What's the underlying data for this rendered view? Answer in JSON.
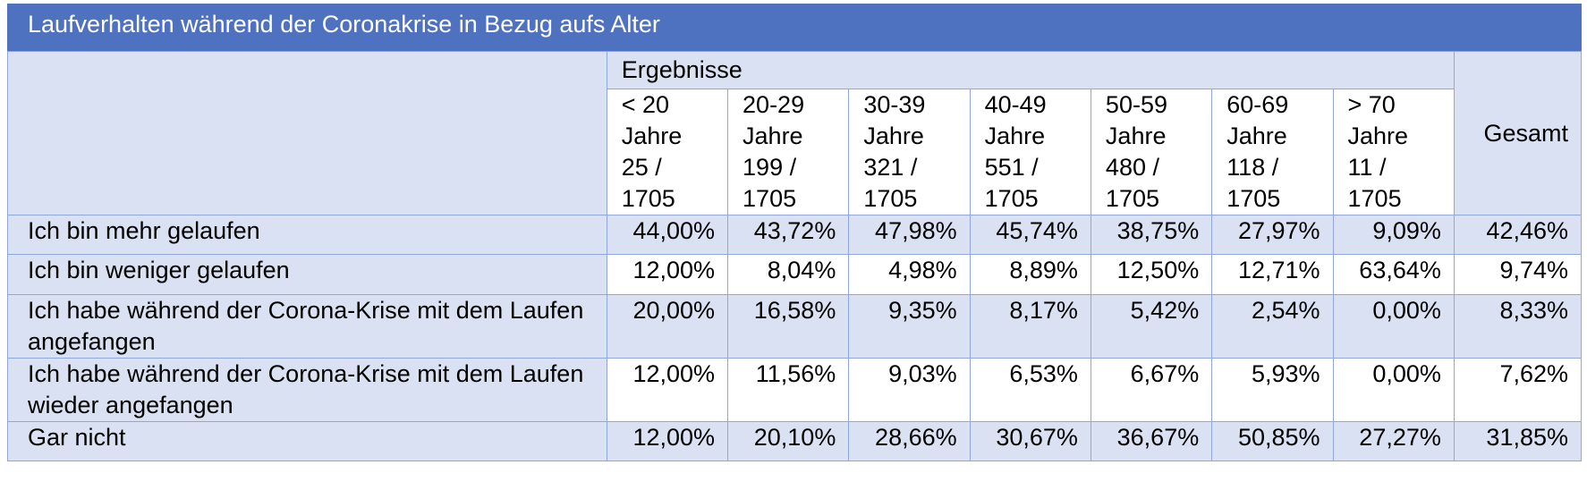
{
  "title": "Laufverhalten während der Coronakrise in Bezug aufs Alter",
  "group_header": "Ergebnisse",
  "total_header": "Gesamt",
  "columns": [
    {
      "range": "< 20",
      "unit": "Jahre",
      "count": "25 /",
      "total": "1705"
    },
    {
      "range": "20-29",
      "unit": "Jahre",
      "count": "199 /",
      "total": "1705"
    },
    {
      "range": "30-39",
      "unit": "Jahre",
      "count": "321 /",
      "total": "1705"
    },
    {
      "range": "40-49",
      "unit": "Jahre",
      "count": "551 /",
      "total": "1705"
    },
    {
      "range": "50-59",
      "unit": "Jahre",
      "count": "480 /",
      "total": "1705"
    },
    {
      "range": "60-69",
      "unit": "Jahre",
      "count": "118 /",
      "total": "1705"
    },
    {
      "range": "> 70",
      "unit": "Jahre",
      "count": "11 /",
      "total": "1705"
    }
  ],
  "rows": [
    {
      "label": "Ich bin mehr gelaufen",
      "values": [
        "44,00%",
        "43,72%",
        "47,98%",
        "45,74%",
        "38,75%",
        "27,97%",
        "9,09%",
        "42,46%"
      ]
    },
    {
      "label": "Ich bin weniger gelaufen",
      "values": [
        "12,00%",
        "8,04%",
        "4,98%",
        "8,89%",
        "12,50%",
        "12,71%",
        "63,64%",
        "9,74%"
      ]
    },
    {
      "label": "Ich habe während der Corona-Krise mit dem Laufen angefangen",
      "values": [
        "20,00%",
        "16,58%",
        "9,35%",
        "8,17%",
        "5,42%",
        "2,54%",
        "0,00%",
        "8,33%"
      ]
    },
    {
      "label": "Ich habe während der Corona-Krise mit dem Laufen wieder angefangen",
      "values": [
        "12,00%",
        "11,56%",
        "9,03%",
        "6,53%",
        "6,67%",
        "5,93%",
        "0,00%",
        "7,62%"
      ]
    },
    {
      "label": "Gar nicht",
      "values": [
        "12,00%",
        "20,10%",
        "28,66%",
        "30,67%",
        "36,67%",
        "50,85%",
        "27,27%",
        "31,85%"
      ]
    }
  ],
  "colors": {
    "title_bg": "#4f72c0",
    "shade": "#d9e1f2",
    "border": "#8fa7dc"
  }
}
